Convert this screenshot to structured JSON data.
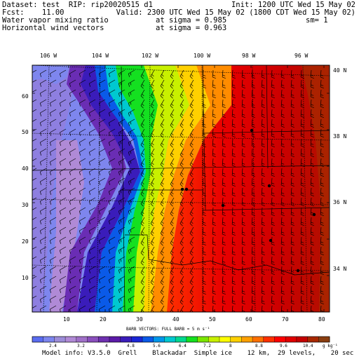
{
  "header": {
    "line1_left": "Dataset: test  RIP: rip20020515 d1",
    "line1_right": "Init: 1200 UTC Wed 15 May 02",
    "line2_left": "Fcst:    11.00",
    "line2_right": "Valid: 2300 UTC Wed 15 May 02 (1800 CDT Wed 15 May 02)",
    "line3_left": "Water vapor mixing ratio",
    "line3_mid": "at sigma = 0.985",
    "line3_right": "sm= 1",
    "line4_left": "Horizontal wind vectors",
    "line4_mid": "at sigma = 0.963"
  },
  "map": {
    "lon_labels": [
      "106 W",
      "104 W",
      "102 W",
      "100 W",
      "98 W",
      "96 W"
    ],
    "lat_labels": [
      "40 N",
      "38 N",
      "36 N",
      "34 N"
    ],
    "x_ticks": [
      "10",
      "20",
      "30",
      "40",
      "50",
      "60",
      "70",
      "80"
    ],
    "y_ticks": [
      "10",
      "20",
      "30",
      "40",
      "50",
      "60"
    ],
    "grid_x_range": [
      1,
      82
    ],
    "grid_y_range": [
      1,
      69
    ]
  },
  "barb_caption": "BARB VECTORS:  FULL BARB = 5 m s⁻¹",
  "colorbar": {
    "units": "g kg⁻¹",
    "labels": [
      "2.4",
      "3.2",
      "4",
      "4.8",
      "5.6",
      "6.4",
      "7.2",
      "8",
      "8.8",
      "9.6",
      "10.4"
    ],
    "colors": [
      "#5a6cf0",
      "#7c85ee",
      "#9c8cd8",
      "#b18ad6",
      "#a070c8",
      "#8a4fbd",
      "#6e2fb0",
      "#5b1aa8",
      "#3a1cba",
      "#1a26d6",
      "#0a5ae8",
      "#0096ea",
      "#00c8d0",
      "#00d890",
      "#14e020",
      "#7ae600",
      "#c8f000",
      "#ffff00",
      "#ffd000",
      "#ffa000",
      "#ff7000",
      "#ff3000",
      "#ff0000",
      "#e00000",
      "#c40000",
      "#a82800",
      "#8a3e10"
    ]
  },
  "footer": "Model info: V3.5.0  Grell    Blackadar  Simple ice    12 km,  29 levels,    20 sec"
}
